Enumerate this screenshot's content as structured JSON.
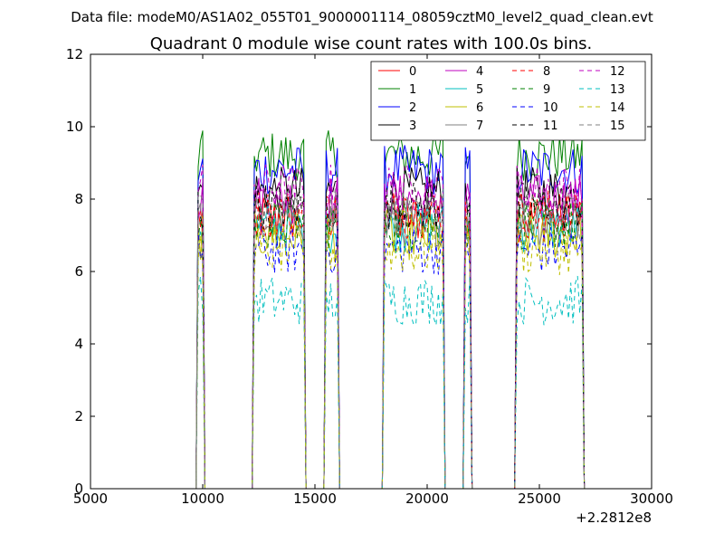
{
  "figure": {
    "suptitle": "Data file: modeM0/AS1A02_055T01_9000001114_08059cztM0_level2_quad_clean.evt"
  },
  "chart_data": {
    "type": "line",
    "title": "Quadrant 0 module wise count rates with 100.0s bins.",
    "xlabel": "",
    "ylabel": "",
    "x_offset_label": "+2.2812e8",
    "xlim": [
      5000,
      30000
    ],
    "ylim": [
      0,
      12
    ],
    "x_ticks": [
      "5000",
      "10000",
      "15000",
      "20000",
      "25000",
      "30000"
    ],
    "y_ticks": [
      "0",
      "2",
      "4",
      "6",
      "8",
      "10",
      "12"
    ],
    "grid": false,
    "legend_position": "top-right",
    "legend_columns": 4,
    "segments": [
      {
        "x_start": 9800,
        "x_end": 10000
      },
      {
        "x_start": 12300,
        "x_end": 14500
      },
      {
        "x_start": 15500,
        "x_end": 16000
      },
      {
        "x_start": 18100,
        "x_end": 20700
      },
      {
        "x_start": 21700,
        "x_end": 21900
      },
      {
        "x_start": 24000,
        "x_end": 26900
      }
    ],
    "series": [
      {
        "name": "0",
        "color": "#ff0000",
        "dash": "solid",
        "base": 7.5
      },
      {
        "name": "1",
        "color": "#008000",
        "dash": "solid",
        "base": 9.2
      },
      {
        "name": "2",
        "color": "#0000ff",
        "dash": "solid",
        "base": 8.8
      },
      {
        "name": "3",
        "color": "#000000",
        "dash": "solid",
        "base": 8.2
      },
      {
        "name": "4",
        "color": "#bf00bf",
        "dash": "solid",
        "base": 8.0
      },
      {
        "name": "5",
        "color": "#00bfbf",
        "dash": "solid",
        "base": 7.2
      },
      {
        "name": "6",
        "color": "#bfbf00",
        "dash": "solid",
        "base": 7.0
      },
      {
        "name": "7",
        "color": "#808080",
        "dash": "solid",
        "base": 7.4
      },
      {
        "name": "8",
        "color": "#ff0000",
        "dash": "dashed",
        "base": 7.6
      },
      {
        "name": "9",
        "color": "#008000",
        "dash": "dashed",
        "base": 7.3
      },
      {
        "name": "10",
        "color": "#0000ff",
        "dash": "dashed",
        "base": 6.6
      },
      {
        "name": "11",
        "color": "#000000",
        "dash": "dashed",
        "base": 7.8
      },
      {
        "name": "12",
        "color": "#bf00bf",
        "dash": "dashed",
        "base": 8.3
      },
      {
        "name": "13",
        "color": "#00bfbf",
        "dash": "dashed",
        "base": 5.2
      },
      {
        "name": "14",
        "color": "#bfbf00",
        "dash": "dashed",
        "base": 6.6
      },
      {
        "name": "15",
        "color": "#808080",
        "dash": "dashed",
        "base": 7.6
      }
    ]
  }
}
